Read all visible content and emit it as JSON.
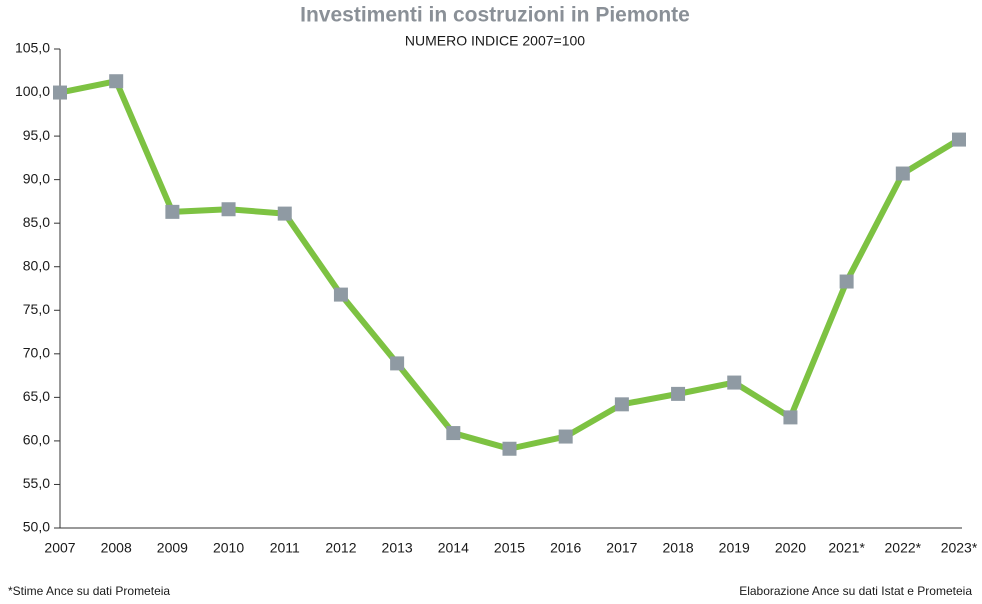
{
  "chart_data": {
    "type": "line",
    "title": "Investimenti in costruzioni in Piemonte",
    "subtitle": "NUMERO INDICE 2007=100",
    "categories": [
      "2007",
      "2008",
      "2009",
      "2010",
      "2011",
      "2012",
      "2013",
      "2014",
      "2015",
      "2016",
      "2017",
      "2018",
      "2019",
      "2020",
      "2021*",
      "2022*",
      "2023*"
    ],
    "values": [
      100.0,
      101.3,
      86.3,
      86.6,
      86.1,
      76.8,
      68.9,
      60.9,
      59.1,
      60.5,
      64.2,
      65.4,
      66.7,
      62.7,
      78.3,
      90.7,
      94.6
    ],
    "color": "#7dc242",
    "marker_color": "#8f9aa3",
    "ylim": [
      50,
      105
    ],
    "yticks": [
      {
        "value": 50,
        "label": "50,0"
      },
      {
        "value": 55,
        "label": "55,0"
      },
      {
        "value": 60,
        "label": "60,0"
      },
      {
        "value": 65,
        "label": "65,0"
      },
      {
        "value": 70,
        "label": "70,0"
      },
      {
        "value": 75,
        "label": "75,0"
      },
      {
        "value": 80,
        "label": "80,0"
      },
      {
        "value": 85,
        "label": "85,0"
      },
      {
        "value": 90,
        "label": "90,0"
      },
      {
        "value": 95,
        "label": "95,0"
      },
      {
        "value": 100,
        "label": "100,0"
      },
      {
        "value": 105,
        "label": "105,0"
      }
    ],
    "grid": false,
    "footnote": "*Stime Ance su dati Prometeia",
    "source": "Elaborazione Ance su dati Istat e Prometeia"
  }
}
